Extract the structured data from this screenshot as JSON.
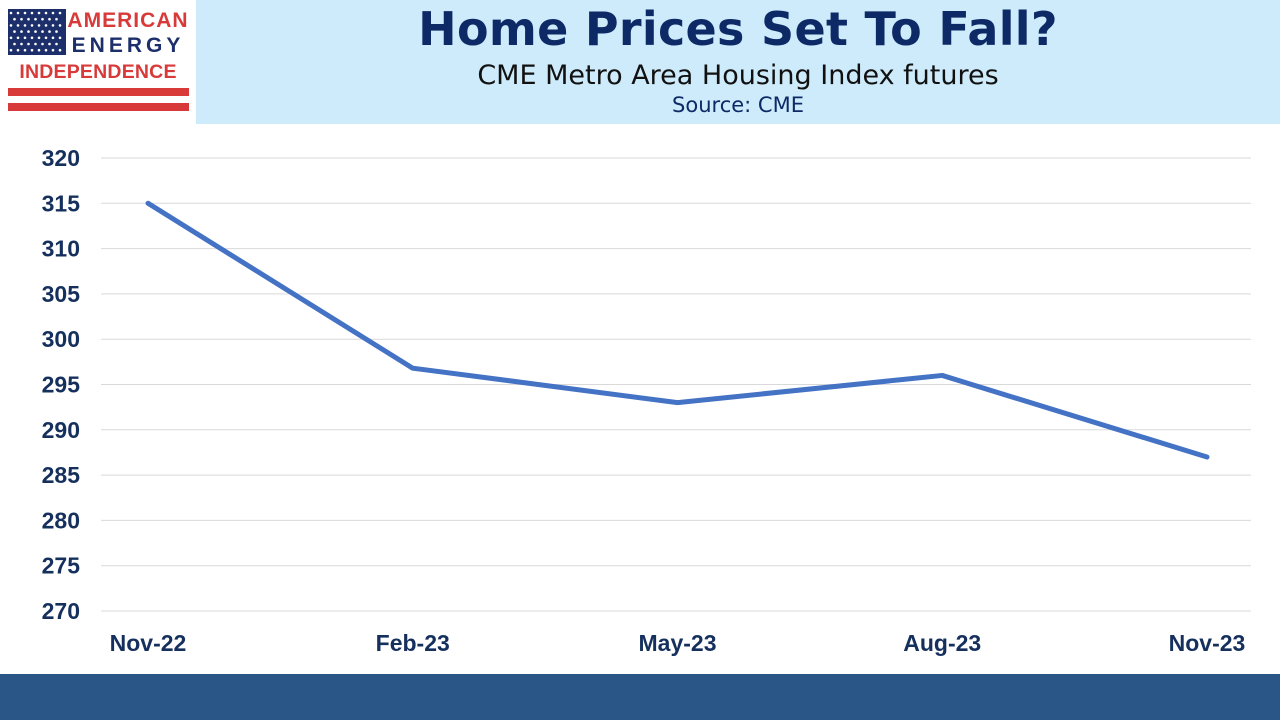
{
  "logo": {
    "line1": "AMERICAN",
    "line2": "ENERGY",
    "line3": "INDEPENDENCE",
    "colors": {
      "red": "#d83a3a",
      "navy": "#1d2f6b"
    }
  },
  "header": {
    "title": "Home Prices Set To Fall?",
    "subtitle": "CME Metro Area Housing Index futures",
    "source": "Source: CME"
  },
  "chart_data": {
    "type": "line",
    "categories": [
      "Nov-22",
      "Feb-23",
      "May-23",
      "Aug-23",
      "Nov-23"
    ],
    "series": [
      {
        "values": [
          315,
          296.8,
          293,
          296,
          287
        ],
        "color": "#4472c4"
      }
    ],
    "title": "Home Prices Set To Fall?",
    "xlabel": "",
    "ylabel": "",
    "ylim": [
      270,
      320
    ],
    "yticks": [
      270,
      275,
      280,
      285,
      290,
      295,
      300,
      305,
      310,
      315,
      320
    ],
    "grid": true,
    "legend": "none"
  },
  "colors": {
    "header_bg": "#cdebfb",
    "title": "#0d2a66",
    "axis_text": "#16305e",
    "gridline": "#d9d9d9",
    "footer": "#2a5587"
  }
}
